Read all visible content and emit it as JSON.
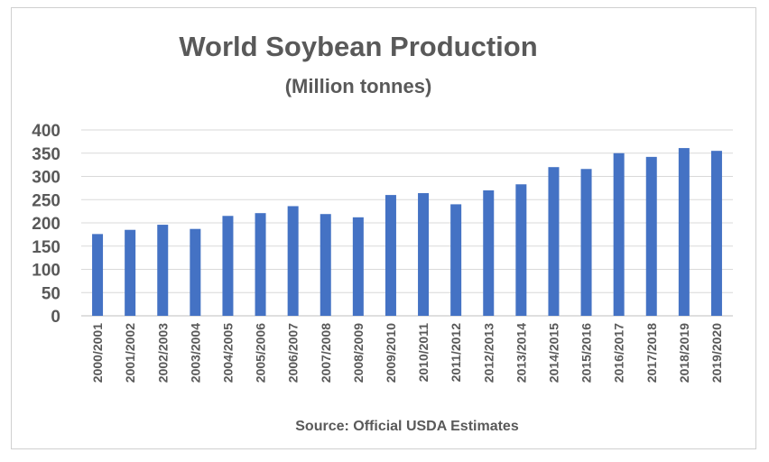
{
  "chart_data": {
    "type": "bar",
    "title": "World Soybean Production",
    "subtitle": "(Million tonnes)",
    "xlabel": "Source: Official USDA Estimates",
    "ylabel": "",
    "ylim": [
      0,
      400
    ],
    "yticks": [
      0,
      50,
      100,
      150,
      200,
      250,
      300,
      350,
      400
    ],
    "grid": true,
    "legend": "none",
    "bar_color": "#4472c4",
    "categories": [
      "2000/2001",
      "2001/2002",
      "2002/2003",
      "2003/2004",
      "2004/2005",
      "2005/2006",
      "2006/2007",
      "2007/2008",
      "2008/2009",
      "2009/2010",
      "2010/2011",
      "2011/2012",
      "2012/2013",
      "2013/2014",
      "2014/2015",
      "2015/2016",
      "2016/2017",
      "2017/2018",
      "2018/2019",
      "2019/2020"
    ],
    "values": [
      176,
      185,
      196,
      187,
      215,
      221,
      236,
      219,
      212,
      260,
      264,
      240,
      270,
      283,
      320,
      316,
      350,
      342,
      361,
      355
    ]
  }
}
